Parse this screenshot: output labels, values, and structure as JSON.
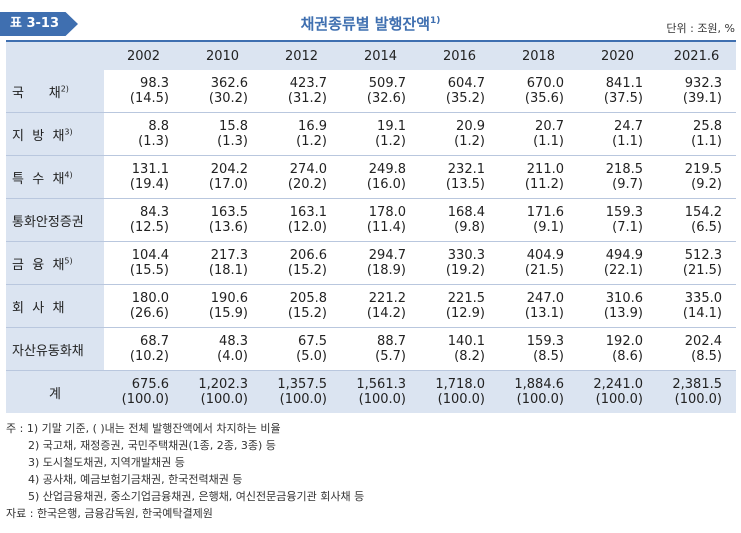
{
  "header": {
    "tag": "표 3-13",
    "title": "채권종류별 발행잔액",
    "title_note": "1)",
    "unit": "단위 : 조원, %"
  },
  "table": {
    "years": [
      "2002",
      "2010",
      "2012",
      "2014",
      "2016",
      "2018",
      "2020",
      "2021.6"
    ],
    "rows": [
      {
        "label": "국      채",
        "sup": "2)",
        "values": [
          "98.3",
          "362.6",
          "423.7",
          "509.7",
          "604.7",
          "670.0",
          "841.1",
          "932.3"
        ],
        "shares": [
          "(14.5)",
          "(30.2)",
          "(31.2)",
          "(32.6)",
          "(35.2)",
          "(35.6)",
          "(37.5)",
          "(39.1)"
        ]
      },
      {
        "label": "지  방  채",
        "sup": "3)",
        "values": [
          "8.8",
          "15.8",
          "16.9",
          "19.1",
          "20.9",
          "20.7",
          "24.7",
          "25.8"
        ],
        "shares": [
          "(1.3)",
          "(1.3)",
          "(1.2)",
          "(1.2)",
          "(1.2)",
          "(1.1)",
          "(1.1)",
          "(1.1)"
        ]
      },
      {
        "label": "특  수  채",
        "sup": "4)",
        "values": [
          "131.1",
          "204.2",
          "274.0",
          "249.8",
          "232.1",
          "211.0",
          "218.5",
          "219.5"
        ],
        "shares": [
          "(19.4)",
          "(17.0)",
          "(20.2)",
          "(16.0)",
          "(13.5)",
          "(11.2)",
          "(9.7)",
          "(9.2)"
        ]
      },
      {
        "label": "통화안정증권",
        "sup": "",
        "values": [
          "84.3",
          "163.5",
          "163.1",
          "178.0",
          "168.4",
          "171.6",
          "159.3",
          "154.2"
        ],
        "shares": [
          "(12.5)",
          "(13.6)",
          "(12.0)",
          "(11.4)",
          "(9.8)",
          "(9.1)",
          "(7.1)",
          "(6.5)"
        ]
      },
      {
        "label": "금  융  채",
        "sup": "5)",
        "values": [
          "104.4",
          "217.3",
          "206.6",
          "294.7",
          "330.3",
          "404.9",
          "494.9",
          "512.3"
        ],
        "shares": [
          "(15.5)",
          "(18.1)",
          "(15.2)",
          "(18.9)",
          "(19.2)",
          "(21.5)",
          "(22.1)",
          "(21.5)"
        ]
      },
      {
        "label": "회  사  채",
        "sup": "",
        "values": [
          "180.0",
          "190.6",
          "205.8",
          "221.2",
          "221.5",
          "247.0",
          "310.6",
          "335.0"
        ],
        "shares": [
          "(26.6)",
          "(15.9)",
          "(15.2)",
          "(14.2)",
          "(12.9)",
          "(13.1)",
          "(13.9)",
          "(14.1)"
        ]
      },
      {
        "label": "자산유동화채",
        "sup": "",
        "values": [
          "68.7",
          "48.3",
          "67.5",
          "88.7",
          "140.1",
          "159.3",
          "192.0",
          "202.4"
        ],
        "shares": [
          "(10.2)",
          "(4.0)",
          "(5.0)",
          "(5.7)",
          "(8.2)",
          "(8.5)",
          "(8.6)",
          "(8.5)"
        ]
      }
    ],
    "total": {
      "label": "계",
      "values": [
        "675.6",
        "1,202.3",
        "1,357.5",
        "1,561.3",
        "1,718.0",
        "1,884.6",
        "2,241.0",
        "2,381.5"
      ],
      "shares": [
        "(100.0)",
        "(100.0)",
        "(100.0)",
        "(100.0)",
        "(100.0)",
        "(100.0)",
        "(100.0)",
        "(100.0)"
      ]
    }
  },
  "notes": [
    "주 : 1) 기말 기준, ( )내는 전체 발행잔액에서 차지하는 비율",
    "2) 국고채, 재정증권, 국민주택채권(1종, 2종, 3종) 등",
    "3) 도시철도채권, 지역개발채권 등",
    "4) 공사채, 예금보험기금채권, 한국전력채권 등",
    "5) 산업금융채권, 중소기업금융채권, 은행채, 여신전문금융기관 회사채 등",
    "자료 : 한국은행, 금융감독원, 한국예탁결제원"
  ],
  "colors": {
    "accent": "#3f6fb0",
    "header_bg": "#dbe4f1"
  }
}
